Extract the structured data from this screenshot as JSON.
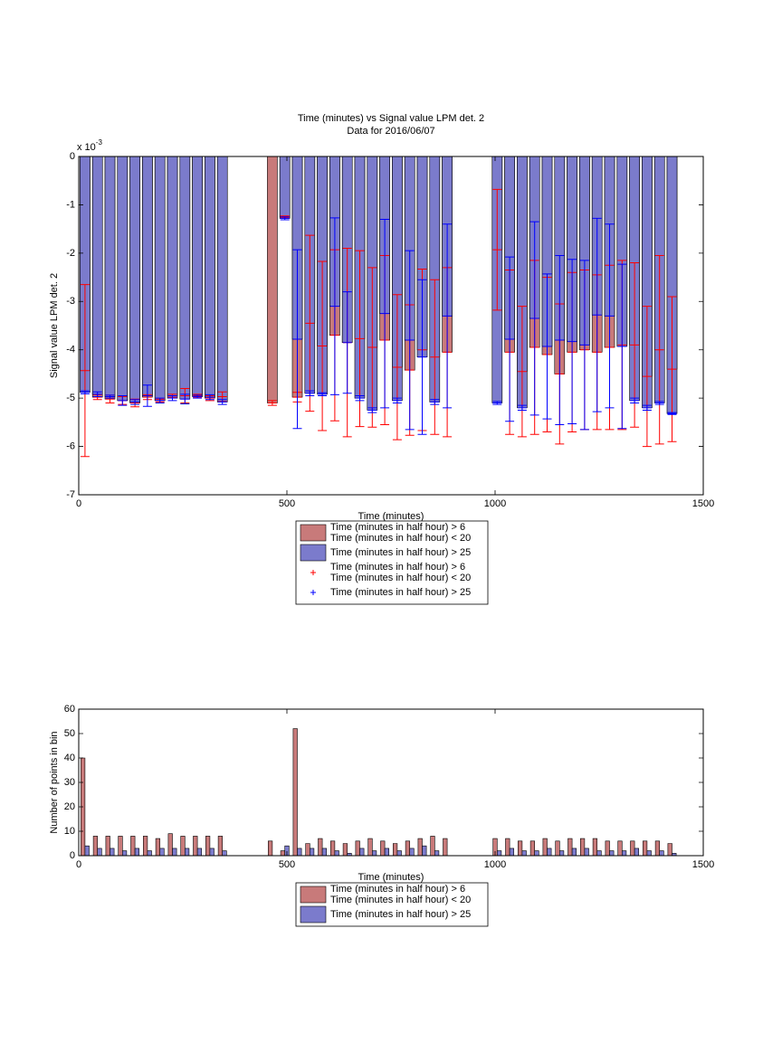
{
  "chart_data": [
    {
      "type": "bar",
      "bar_mode": "overlay",
      "title": "Time (minutes) vs Signal value LPM det. 2",
      "subtitle": "Data for 2016/06/07",
      "x_label": "Time (minutes)",
      "y_label": "Signal value LPM det. 2",
      "y_multiplier": {
        "base": "x 10",
        "exponent": "-3"
      },
      "x": [
        15,
        45,
        75,
        105,
        135,
        165,
        195,
        225,
        255,
        285,
        315,
        345,
        375,
        405,
        435,
        465,
        495,
        525,
        555,
        585,
        615,
        645,
        675,
        705,
        735,
        765,
        795,
        825,
        855,
        885,
        915,
        945,
        975,
        1005,
        1035,
        1065,
        1095,
        1125,
        1155,
        1185,
        1215,
        1245,
        1275,
        1305,
        1335,
        1365,
        1395,
        1425
      ],
      "xlim": [
        0,
        1500
      ],
      "xticks": [
        0,
        500,
        1000,
        1500
      ],
      "ylim": [
        -7,
        0
      ],
      "yticks": [
        -7,
        -6,
        -5,
        -4,
        -3,
        -2,
        -1,
        0
      ],
      "legend": "below",
      "series": [
        {
          "name": "Time (minutes in half hour) > 6\nTime (minutes in half hour) < 20",
          "color": "#c87a7a",
          "error_color": "#ff0000",
          "error_name": "Time (minutes in half hour) > 6\nTime (minutes in half hour) < 20",
          "values": [
            -4.43,
            -4.98,
            -5.02,
            -5.05,
            -5.1,
            -4.98,
            -5.05,
            -4.95,
            -4.95,
            -4.95,
            -5.0,
            -4.97,
            0,
            0,
            0,
            -5.1,
            -1.25,
            -4.98,
            -3.45,
            -3.92,
            -3.7,
            -3.85,
            -3.77,
            -3.95,
            -3.8,
            -4.36,
            -4.42,
            -4.0,
            -4.15,
            -4.05,
            0,
            0,
            0,
            -1.93,
            -4.05,
            -4.45,
            -3.95,
            -4.1,
            -4.5,
            -4.05,
            -4.0,
            -4.05,
            -3.95,
            -3.9,
            -3.9,
            -4.55,
            -4.0,
            -4.4
          ],
          "errors": [
            1.78,
            0.05,
            0.08,
            0.08,
            0.08,
            0.05,
            0.03,
            0.03,
            0.15,
            0.03,
            0.05,
            0.1,
            null,
            null,
            null,
            0.05,
            0.02,
            0.1,
            1.82,
            1.75,
            1.77,
            1.95,
            1.82,
            1.65,
            1.75,
            1.5,
            1.35,
            1.67,
            1.6,
            1.75,
            null,
            null,
            null,
            1.25,
            1.7,
            1.35,
            1.8,
            1.6,
            1.45,
            1.65,
            1.65,
            1.6,
            1.7,
            1.75,
            1.7,
            1.45,
            1.95,
            1.5
          ]
        },
        {
          "name": "Time (minutes in half hour) > 25",
          "color": "#7b7bcc",
          "error_color": "#0000ff",
          "error_name": "Time (minutes in half hour) > 25",
          "values": [
            -4.88,
            -4.92,
            -4.97,
            -5.05,
            -5.08,
            -4.95,
            -5.05,
            -5.0,
            -5.02,
            -4.97,
            -4.98,
            -5.08,
            0,
            0,
            0,
            null,
            -1.28,
            -3.78,
            -4.9,
            -4.92,
            -3.1,
            -3.85,
            -5.0,
            -5.25,
            -3.25,
            -5.05,
            -3.8,
            -4.15,
            -5.08,
            -3.3,
            0,
            0,
            0,
            -5.1,
            -3.78,
            -5.2,
            -3.35,
            -3.93,
            -3.8,
            -3.83,
            -3.9,
            -3.28,
            -3.3,
            -3.93,
            -5.05,
            -5.2,
            -5.1,
            -5.32
          ],
          "errors": [
            0.03,
            0.05,
            0.03,
            0.1,
            0.05,
            0.22,
            0.05,
            0.05,
            0.1,
            0.03,
            0.05,
            0.05,
            null,
            null,
            null,
            null,
            0.03,
            1.85,
            0.05,
            0.03,
            1.83,
            1.05,
            0.05,
            0.05,
            1.95,
            0.05,
            1.85,
            1.6,
            0.05,
            1.9,
            null,
            null,
            null,
            0.03,
            1.7,
            0.05,
            2.0,
            1.5,
            1.75,
            1.7,
            1.75,
            2.0,
            1.9,
            1.7,
            0.05,
            0.05,
            0.03,
            0.02
          ]
        }
      ]
    },
    {
      "type": "bar",
      "bar_mode": "grouped",
      "x_label": "Time (minutes)",
      "y_label": "Number of points in bin",
      "x": [
        15,
        45,
        75,
        105,
        135,
        165,
        195,
        225,
        255,
        285,
        315,
        345,
        375,
        405,
        435,
        465,
        495,
        525,
        555,
        585,
        615,
        645,
        675,
        705,
        735,
        765,
        795,
        825,
        855,
        885,
        915,
        945,
        975,
        1005,
        1035,
        1065,
        1095,
        1125,
        1155,
        1185,
        1215,
        1245,
        1275,
        1305,
        1335,
        1365,
        1395,
        1425
      ],
      "xlim": [
        0,
        1500
      ],
      "xticks": [
        0,
        500,
        1000,
        1500
      ],
      "ylim": [
        0,
        60
      ],
      "yticks": [
        0,
        10,
        20,
        30,
        40,
        50,
        60
      ],
      "legend": "below",
      "series": [
        {
          "name": "Time (minutes in half hour) > 6\nTime (minutes in half hour) < 20",
          "color": "#c87a7a",
          "values": [
            40,
            8,
            8,
            8,
            8,
            8,
            7,
            9,
            8,
            8,
            8,
            8,
            0,
            0,
            0,
            6,
            2,
            52,
            5,
            7,
            6,
            5,
            6,
            7,
            6,
            5,
            6,
            7,
            8,
            7,
            0,
            0,
            0,
            7,
            7,
            6,
            6,
            7,
            6,
            7,
            7,
            7,
            6,
            6,
            6,
            6,
            6,
            5
          ]
        },
        {
          "name": "Time (minutes in half hour) > 25",
          "color": "#7b7bcc",
          "values": [
            4,
            3,
            3,
            2,
            3,
            2,
            3,
            3,
            3,
            3,
            3,
            2,
            0,
            0,
            0,
            0,
            4,
            3,
            3,
            3,
            2,
            1,
            3,
            2,
            3,
            2,
            3,
            4,
            2,
            0,
            0,
            0,
            0,
            2,
            3,
            2,
            2,
            3,
            2,
            3,
            3,
            2,
            2,
            2,
            3,
            2,
            2,
            1
          ]
        }
      ]
    }
  ]
}
